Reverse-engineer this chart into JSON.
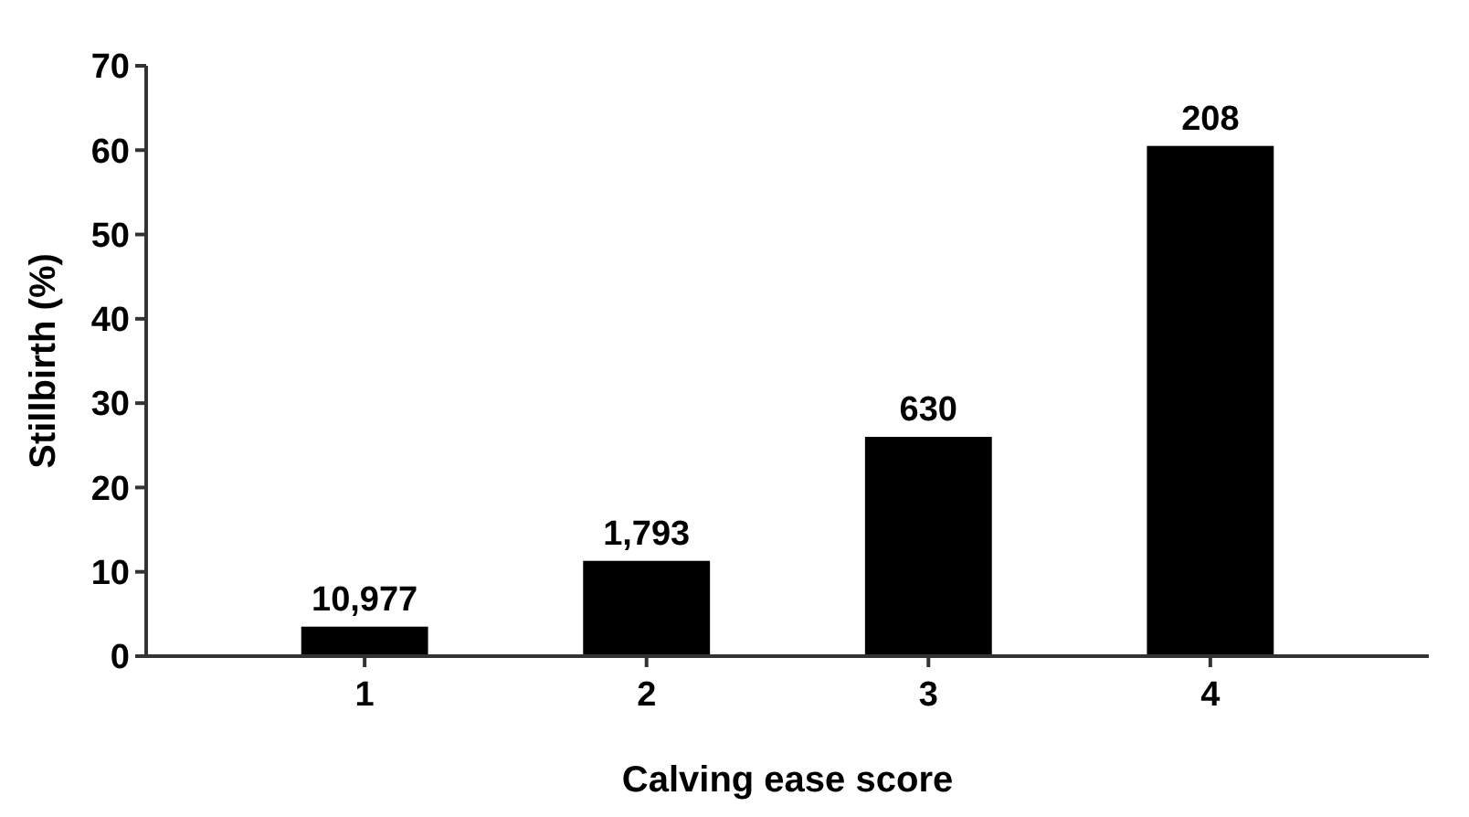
{
  "chart_data": {
    "type": "bar",
    "xlabel": "Calving ease score",
    "ylabel": "Stillbirth (%)",
    "categories": [
      "1",
      "2",
      "3",
      "4"
    ],
    "values": [
      3.5,
      11.3,
      26,
      60.5
    ],
    "color": "#000000",
    "ylim": [
      0,
      70
    ],
    "yticks": [
      0,
      10,
      20,
      30,
      40,
      50,
      60,
      70
    ],
    "annotations": [
      {
        "text": "10,977",
        "x": "1",
        "y": 3.5
      },
      {
        "text": "1,793",
        "x": "2",
        "y": 11.3
      },
      {
        "text": "630",
        "x": "3",
        "y": 26
      },
      {
        "text": "208",
        "x": "4",
        "y": 60.5
      }
    ]
  }
}
